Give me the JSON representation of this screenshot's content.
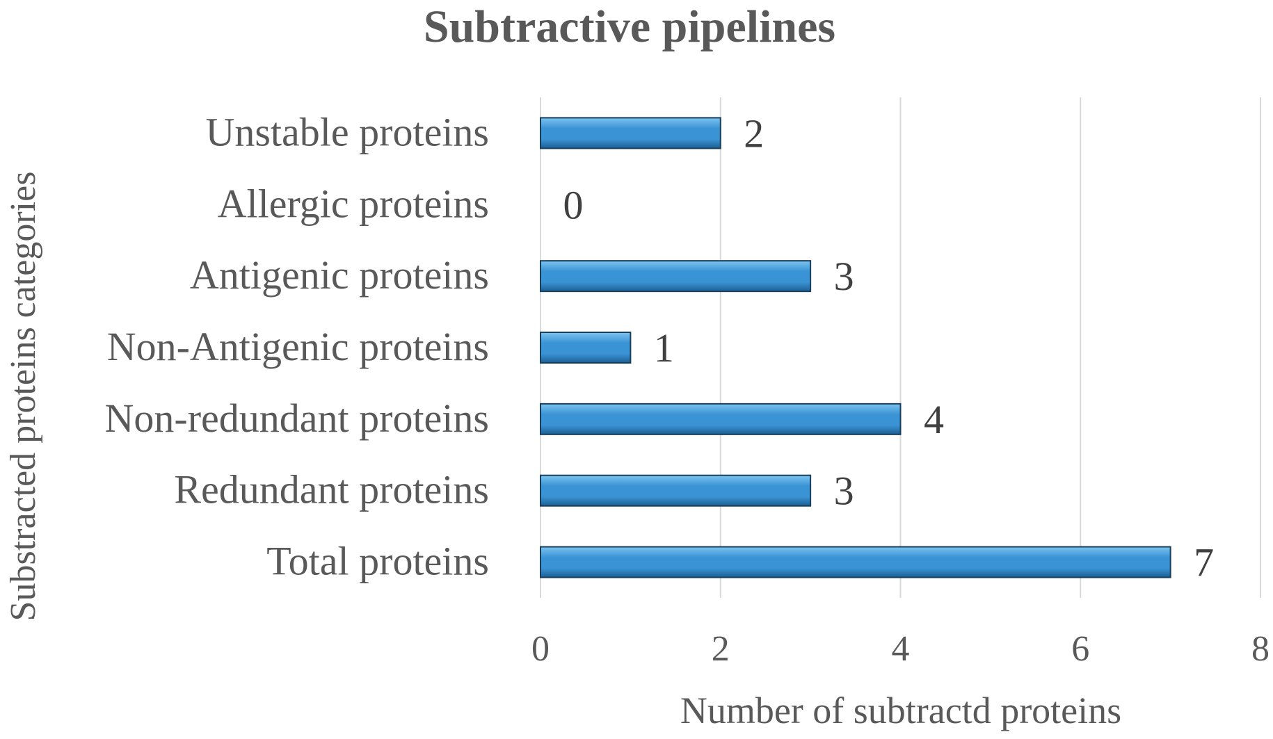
{
  "chart_data": {
    "type": "bar",
    "orientation": "horizontal",
    "title": "Subtractive pipelines",
    "xlabel": "Number of subtractd proteins",
    "ylabel": "Substracted proteins categories",
    "categories": [
      "Unstable proteins",
      "Allergic proteins",
      "Antigenic proteins",
      "Non-Antigenic proteins",
      "Non-redundant proteins",
      "Redundant proteins",
      "Total proteins"
    ],
    "values": [
      2,
      0,
      3,
      1,
      4,
      3,
      7
    ],
    "xlim": [
      0,
      8
    ],
    "xticks": [
      "0",
      "2",
      "4",
      "6",
      "8"
    ],
    "grid": "vertical",
    "legend": "none",
    "data_labels": true,
    "colors": {
      "bar_light": "#7cc4f0",
      "bar_mid": "#3a93d4",
      "bar_dark": "#1c5f93",
      "bar_edge": "#1a3f5c",
      "grid": "#d9d9d9",
      "text": "#595959",
      "label": "#404040"
    }
  }
}
